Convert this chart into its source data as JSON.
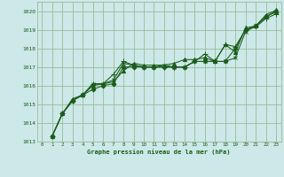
{
  "bg_color": "#cce8e8",
  "grid_color": "#99bb99",
  "line_color": "#1a5c1a",
  "text_color": "#1a5c1a",
  "xlabel": "Graphe pression niveau de la mer (hPa)",
  "ylim": [
    1013.0,
    1020.5
  ],
  "xlim": [
    -0.5,
    23.5
  ],
  "yticks": [
    1013,
    1014,
    1015,
    1016,
    1017,
    1018,
    1019,
    1020
  ],
  "xticks": [
    0,
    1,
    2,
    3,
    4,
    5,
    6,
    7,
    8,
    9,
    10,
    11,
    12,
    13,
    14,
    15,
    16,
    17,
    18,
    19,
    20,
    21,
    22,
    23
  ],
  "series": [
    [
      1013.3,
      1014.5,
      1015.2,
      1015.5,
      1015.8,
      1016.0,
      1016.1,
      1017.0,
      1017.0,
      1017.0,
      1017.0,
      1017.0,
      1017.0,
      1017.0,
      1017.3,
      1017.3,
      1017.3,
      1017.3,
      1018.0,
      1019.0,
      1019.2,
      1019.7,
      1019.95
    ],
    [
      1013.3,
      1014.5,
      1015.3,
      1015.5,
      1016.0,
      1016.1,
      1016.2,
      1016.8,
      1017.2,
      1017.1,
      1017.1,
      1017.1,
      1017.2,
      1017.4,
      1017.4,
      1017.5,
      1017.3,
      1018.2,
      1017.8,
      1019.1,
      1019.2,
      1019.8,
      1020.05
    ],
    [
      1013.3,
      1014.5,
      1015.2,
      1015.5,
      1016.1,
      1016.1,
      1016.6,
      1017.3,
      1017.1,
      1017.0,
      1017.0,
      1017.0,
      1017.0,
      1017.0,
      1017.3,
      1017.7,
      1017.3,
      1018.2,
      1018.1,
      1019.0,
      1019.15,
      1019.6,
      1019.85
    ],
    [
      1013.3,
      1014.5,
      1015.2,
      1015.5,
      1016.1,
      1016.1,
      1016.3,
      1017.2,
      1017.1,
      1017.0,
      1017.0,
      1017.1,
      1017.0,
      1017.0,
      1017.3,
      1017.3,
      1017.3,
      1017.3,
      1017.5,
      1018.9,
      1019.2,
      1019.7,
      1020.0
    ]
  ],
  "markers": [
    "D",
    "^",
    "+",
    "x"
  ],
  "marker_sizes": [
    2.5,
    3.0,
    4.5,
    3.5
  ],
  "linewidth": 0.75
}
